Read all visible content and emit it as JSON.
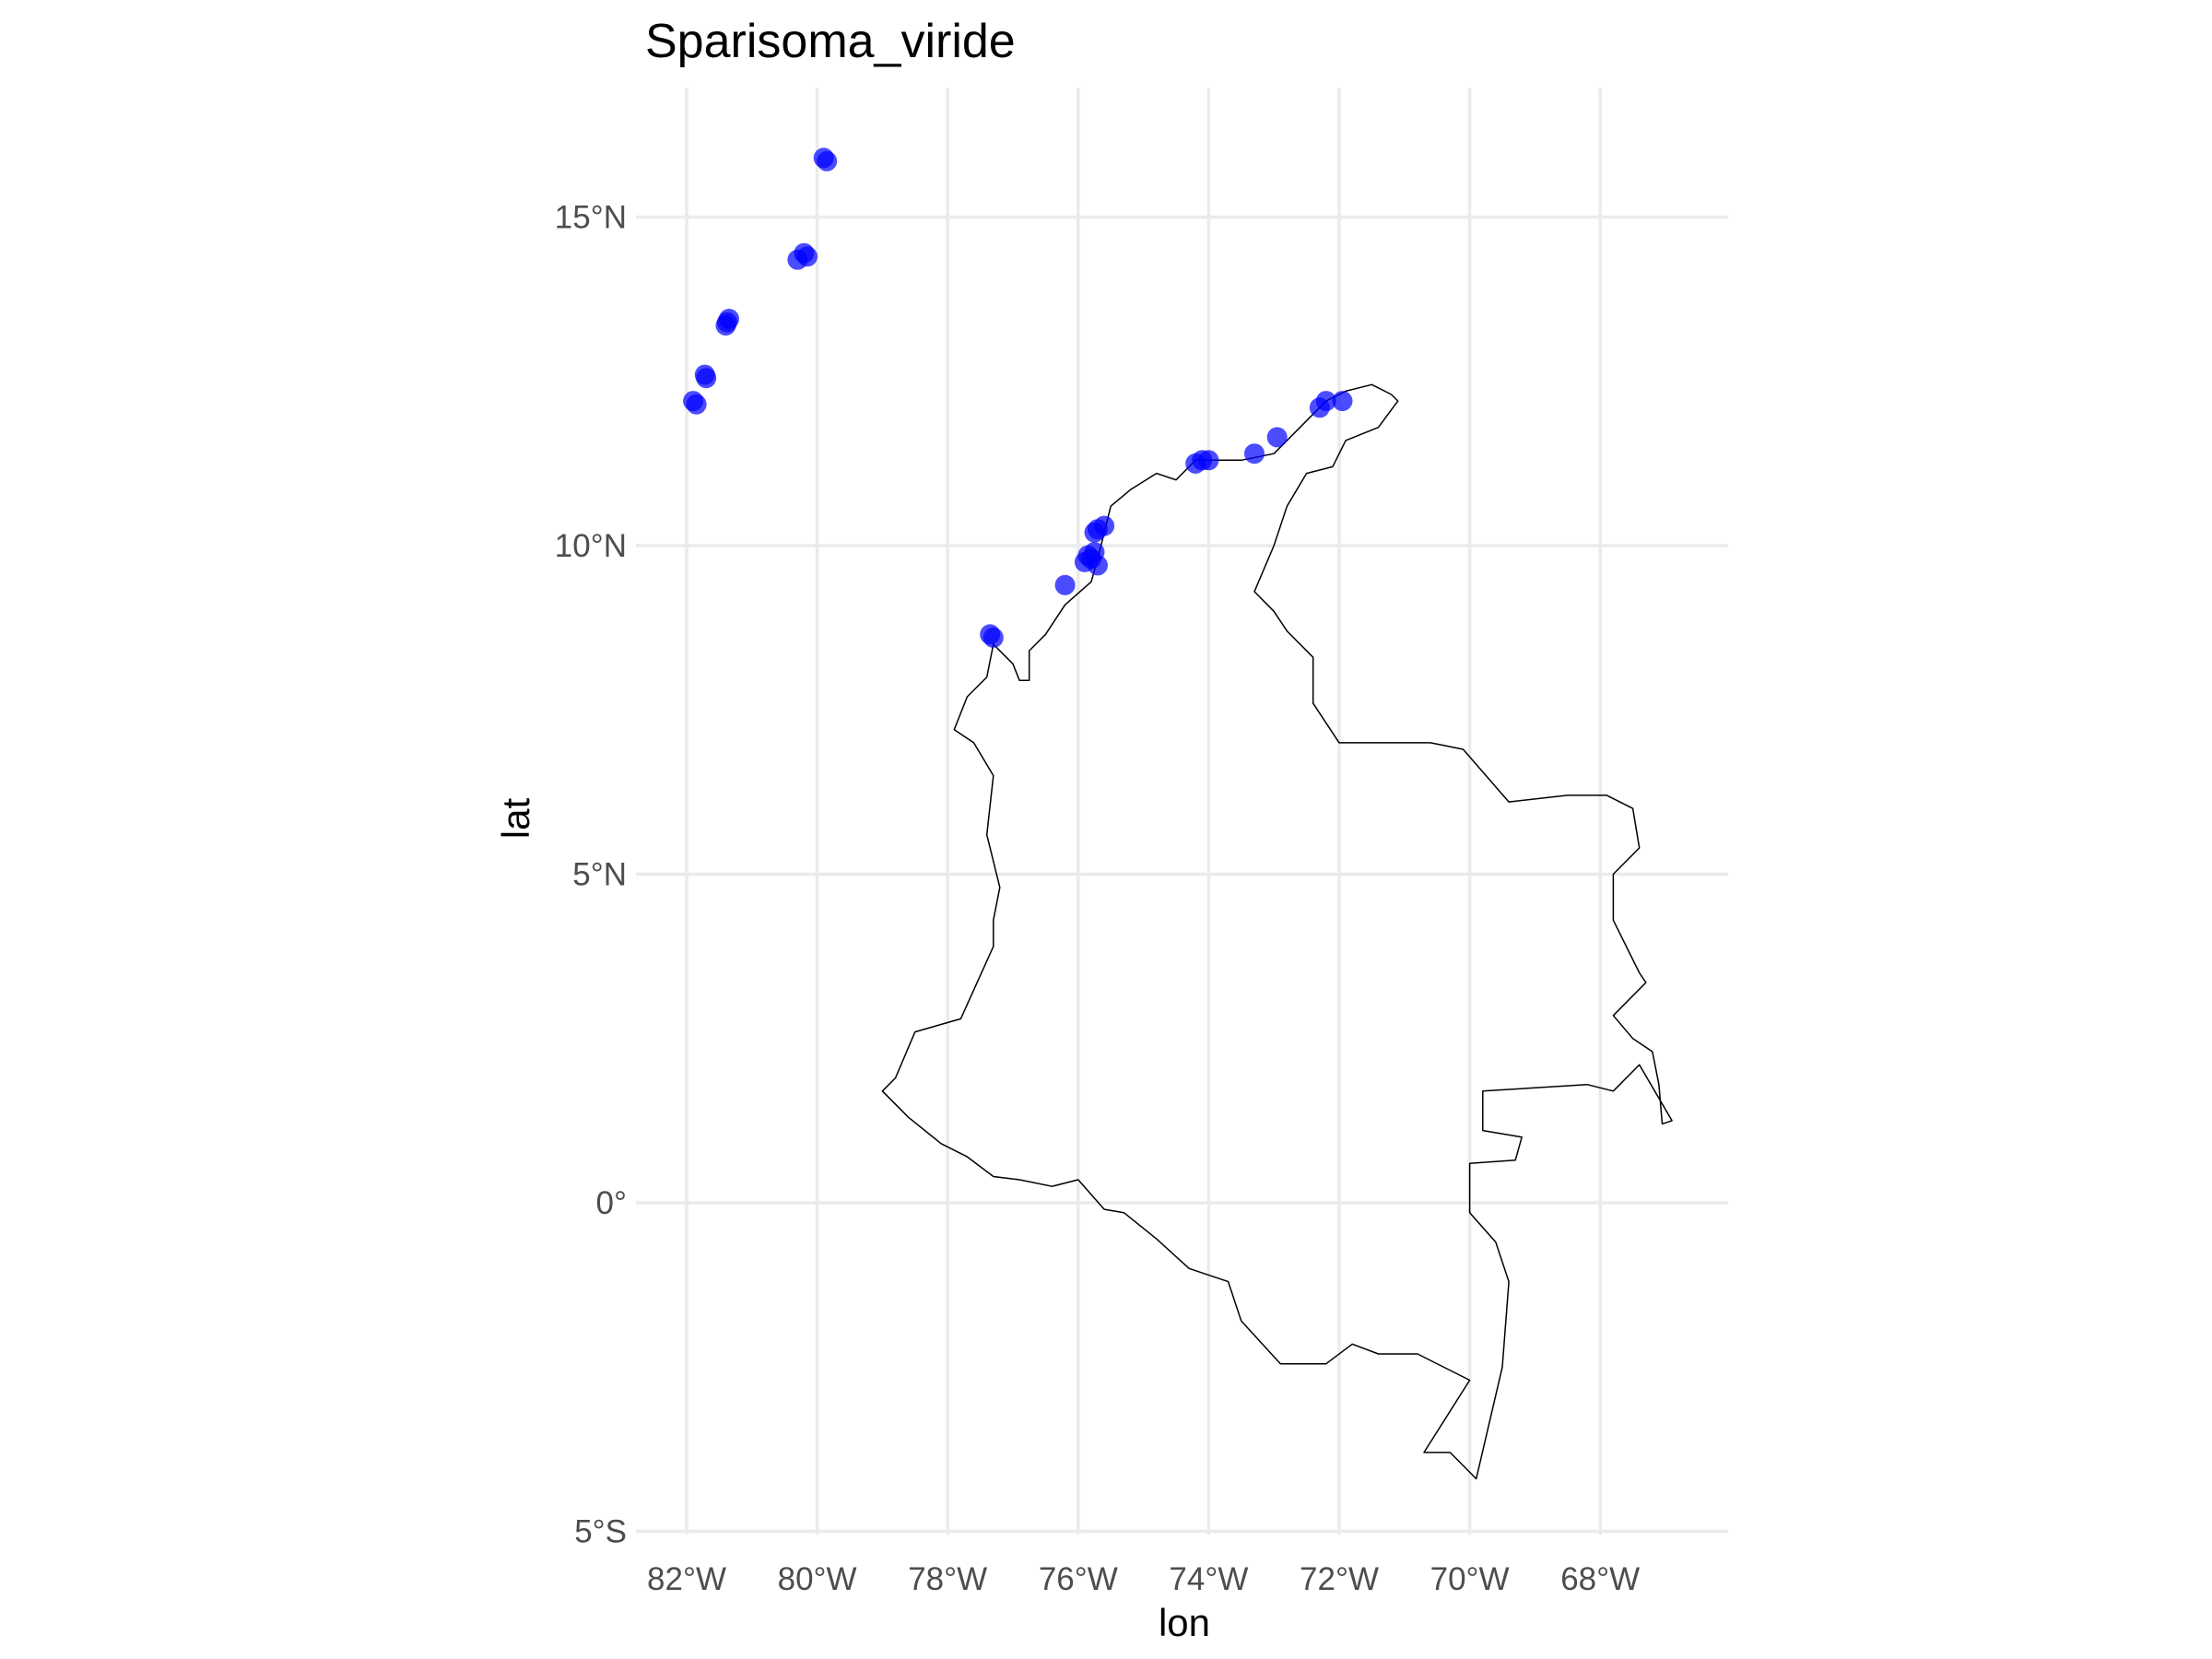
{
  "chart_data": {
    "type": "scatter",
    "title": "Sparisoma_viride",
    "xlabel": "lon",
    "ylabel": "lat",
    "xlim": [
      -82.7,
      -66.6
    ],
    "ylim": [
      -5.0,
      16.8
    ],
    "x_ticks": [
      {
        "value": -82,
        "label": "82°W"
      },
      {
        "value": -80,
        "label": "80°W"
      },
      {
        "value": -78,
        "label": "78°W"
      },
      {
        "value": -76,
        "label": "76°W"
      },
      {
        "value": -74,
        "label": "74°W"
      },
      {
        "value": -72,
        "label": "72°W"
      },
      {
        "value": -70,
        "label": "70°W"
      },
      {
        "value": -68,
        "label": "68°W"
      }
    ],
    "y_ticks": [
      {
        "value": 15,
        "label": "15°N"
      },
      {
        "value": 10,
        "label": "10°N"
      },
      {
        "value": 5,
        "label": "5°N"
      },
      {
        "value": 0,
        "label": "0°"
      },
      {
        "value": -5,
        "label": "5°S"
      }
    ],
    "grid": true,
    "point_color": "#0000ff",
    "outline_color": "#000000",
    "points": [
      {
        "lon": -79.9,
        "lat": 15.9
      },
      {
        "lon": -79.85,
        "lat": 15.85
      },
      {
        "lon": -80.3,
        "lat": 14.35
      },
      {
        "lon": -80.2,
        "lat": 14.45
      },
      {
        "lon": -80.15,
        "lat": 14.4
      },
      {
        "lon": -81.4,
        "lat": 13.35
      },
      {
        "lon": -81.35,
        "lat": 13.45
      },
      {
        "lon": -81.38,
        "lat": 13.4
      },
      {
        "lon": -81.7,
        "lat": 12.55
      },
      {
        "lon": -81.72,
        "lat": 12.6
      },
      {
        "lon": -81.9,
        "lat": 12.2
      },
      {
        "lon": -81.85,
        "lat": 12.15
      },
      {
        "lon": -77.35,
        "lat": 8.65
      },
      {
        "lon": -77.3,
        "lat": 8.6
      },
      {
        "lon": -76.2,
        "lat": 9.4
      },
      {
        "lon": -75.9,
        "lat": 9.75
      },
      {
        "lon": -75.85,
        "lat": 9.85
      },
      {
        "lon": -75.8,
        "lat": 9.8
      },
      {
        "lon": -75.7,
        "lat": 9.7
      },
      {
        "lon": -75.75,
        "lat": 9.9
      },
      {
        "lon": -75.75,
        "lat": 10.2
      },
      {
        "lon": -75.6,
        "lat": 10.3
      },
      {
        "lon": -75.7,
        "lat": 10.25
      },
      {
        "lon": -74.2,
        "lat": 11.25
      },
      {
        "lon": -74.1,
        "lat": 11.3
      },
      {
        "lon": -74.0,
        "lat": 11.3
      },
      {
        "lon": -73.3,
        "lat": 11.4
      },
      {
        "lon": -72.95,
        "lat": 11.65
      },
      {
        "lon": -72.3,
        "lat": 12.1
      },
      {
        "lon": -72.2,
        "lat": 12.2
      },
      {
        "lon": -71.95,
        "lat": 12.2
      }
    ],
    "outline": [
      [
        -77.3,
        8.5
      ],
      [
        -77.1,
        8.3
      ],
      [
        -77.0,
        8.2
      ],
      [
        -76.9,
        7.95
      ],
      [
        -76.75,
        7.95
      ],
      [
        -76.75,
        8.4
      ],
      [
        -76.5,
        8.65
      ],
      [
        -76.2,
        9.1
      ],
      [
        -75.8,
        9.45
      ],
      [
        -75.7,
        9.8
      ],
      [
        -75.5,
        10.6
      ],
      [
        -75.2,
        10.85
      ],
      [
        -74.8,
        11.1
      ],
      [
        -74.5,
        11.0
      ],
      [
        -74.2,
        11.3
      ],
      [
        -73.5,
        11.3
      ],
      [
        -73.0,
        11.4
      ],
      [
        -72.6,
        11.8
      ],
      [
        -72.2,
        12.2
      ],
      [
        -71.9,
        12.35
      ],
      [
        -71.5,
        12.45
      ],
      [
        -71.2,
        12.3
      ],
      [
        -71.1,
        12.2
      ],
      [
        -71.4,
        11.8
      ],
      [
        -71.9,
        11.6
      ],
      [
        -72.1,
        11.2
      ],
      [
        -72.5,
        11.1
      ],
      [
        -72.8,
        10.6
      ],
      [
        -73.0,
        10.0
      ],
      [
        -73.3,
        9.3
      ],
      [
        -73.0,
        9.0
      ],
      [
        -72.8,
        8.7
      ],
      [
        -72.4,
        8.3
      ],
      [
        -72.4,
        7.6
      ],
      [
        -72.0,
        7.0
      ],
      [
        -71.5,
        7.0
      ],
      [
        -71.0,
        7.0
      ],
      [
        -70.6,
        7.0
      ],
      [
        -70.1,
        6.9
      ],
      [
        -69.4,
        6.1
      ],
      [
        -68.5,
        6.2
      ],
      [
        -67.9,
        6.2
      ],
      [
        -67.5,
        6.0
      ],
      [
        -67.4,
        5.4
      ],
      [
        -67.8,
        5.0
      ],
      [
        -67.8,
        4.3
      ],
      [
        -67.4,
        3.5
      ],
      [
        -67.3,
        3.35
      ],
      [
        -67.8,
        2.85
      ],
      [
        -67.5,
        2.5
      ],
      [
        -67.2,
        2.3
      ],
      [
        -67.1,
        1.8
      ],
      [
        -67.05,
        1.2
      ],
      [
        -66.9,
        1.25
      ],
      [
        -67.4,
        2.1
      ],
      [
        -67.8,
        1.7
      ],
      [
        -68.2,
        1.8
      ],
      [
        -69.8,
        1.7
      ],
      [
        -69.8,
        1.1
      ],
      [
        -69.2,
        1.0
      ],
      [
        -69.3,
        0.65
      ],
      [
        -70.0,
        0.6
      ],
      [
        -70.0,
        -0.15
      ],
      [
        -69.6,
        -0.6
      ],
      [
        -69.4,
        -1.2
      ],
      [
        -69.5,
        -2.5
      ],
      [
        -69.9,
        -4.2
      ],
      [
        -70.3,
        -3.8
      ],
      [
        -70.7,
        -3.8
      ],
      [
        -70.0,
        -2.7
      ],
      [
        -70.8,
        -2.3
      ],
      [
        -71.4,
        -2.3
      ],
      [
        -71.8,
        -2.15
      ],
      [
        -72.2,
        -2.45
      ],
      [
        -72.9,
        -2.45
      ],
      [
        -73.5,
        -1.8
      ],
      [
        -73.7,
        -1.2
      ],
      [
        -74.3,
        -1.0
      ],
      [
        -74.8,
        -0.55
      ],
      [
        -75.3,
        -0.15
      ],
      [
        -75.6,
        -0.1
      ],
      [
        -76.0,
        0.35
      ],
      [
        -76.4,
        0.25
      ],
      [
        -76.9,
        0.35
      ],
      [
        -77.3,
        0.4
      ],
      [
        -77.7,
        0.7
      ],
      [
        -78.1,
        0.9
      ],
      [
        -78.6,
        1.3
      ],
      [
        -79.0,
        1.7
      ],
      [
        -78.8,
        1.9
      ],
      [
        -78.5,
        2.6
      ],
      [
        -77.8,
        2.8
      ],
      [
        -77.3,
        3.9
      ],
      [
        -77.3,
        4.3
      ],
      [
        -77.2,
        4.8
      ],
      [
        -77.4,
        5.6
      ],
      [
        -77.3,
        6.5
      ],
      [
        -77.6,
        7.0
      ],
      [
        -77.9,
        7.2
      ],
      [
        -77.7,
        7.7
      ],
      [
        -77.4,
        8.0
      ],
      [
        -77.3,
        8.5
      ]
    ]
  }
}
